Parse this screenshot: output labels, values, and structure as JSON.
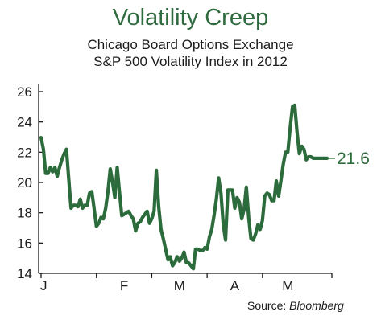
{
  "chart_data": {
    "type": "line",
    "title": "Volatility Creep",
    "subtitle_lines": [
      "Chicago Board Options Exchange",
      "S&P 500 Volatility Index in 2012"
    ],
    "xlabel": "",
    "ylabel": "",
    "ylim": [
      14,
      26
    ],
    "yticks": [
      14,
      16,
      18,
      20,
      22,
      24,
      26
    ],
    "x_tick_labels": [
      "J",
      "F",
      "M",
      "A",
      "M"
    ],
    "grid": false,
    "end_label": "21.6",
    "series": [
      {
        "color": "#2c6b3b",
        "x": [
          0,
          1,
          2,
          3,
          4,
          5,
          6,
          7,
          8,
          9,
          10,
          11,
          12,
          13,
          14,
          15,
          16,
          17,
          18,
          19,
          20,
          21,
          22,
          23,
          24,
          25,
          26,
          27,
          28,
          29,
          30,
          31,
          32,
          33,
          34,
          35,
          36,
          37,
          38,
          39,
          40,
          41,
          42,
          43,
          44,
          45,
          46,
          47,
          48,
          49,
          50,
          51,
          52,
          53,
          54,
          55,
          56,
          57,
          58,
          59,
          60,
          61,
          62,
          63,
          64,
          65,
          66,
          67,
          68,
          69,
          70,
          71,
          72,
          73,
          74,
          75,
          76,
          77,
          78,
          79,
          80,
          81,
          82,
          83,
          84,
          85,
          86,
          87,
          88,
          89,
          90,
          91,
          92,
          93,
          94,
          95,
          96,
          97,
          98,
          99,
          100,
          101,
          102,
          103,
          104,
          105,
          106,
          107,
          108,
          109,
          110,
          111,
          112,
          113,
          114,
          115,
          116,
          117,
          118,
          119,
          120,
          121,
          122,
          123,
          124
        ],
        "values": [
          22.97,
          22.2,
          20.6,
          20.6,
          21.0,
          20.7,
          21.0,
          20.4,
          21.0,
          21.5,
          21.9,
          22.2,
          20.2,
          18.3,
          18.5,
          18.5,
          18.4,
          18.9,
          18.3,
          18.5,
          18.5,
          19.3,
          19.4,
          18.3,
          17.1,
          17.3,
          17.7,
          17.6,
          18.3,
          19.4,
          20.9,
          20.0,
          19.0,
          21.0,
          19.4,
          17.8,
          17.9,
          18.0,
          18.1,
          17.8,
          17.6,
          16.8,
          17.3,
          17.4,
          17.7,
          17.9,
          18.1,
          17.3,
          17.6,
          18.1,
          20.8,
          18.4,
          16.9,
          16.3,
          15.6,
          14.9,
          15.1,
          14.5,
          14.7,
          15.1,
          14.8,
          15.0,
          15.4,
          14.7,
          14.7,
          14.5,
          14.3,
          15.6,
          15.6,
          15.5,
          15.5,
          15.7,
          15.6,
          16.4,
          16.9,
          17.8,
          18.9,
          20.3,
          19.3,
          17.2,
          16.2,
          19.5,
          19.5,
          19.5,
          18.3,
          19.0,
          18.7,
          17.6,
          18.2,
          19.7,
          17.7,
          16.3,
          16.2,
          16.6,
          17.2,
          16.9,
          17.5,
          19.1,
          19.3,
          19.2,
          18.8,
          18.8,
          20.1,
          19.1,
          20.1,
          21.2,
          22.0,
          22.0,
          23.6,
          25.0,
          25.1,
          23.3,
          21.9,
          22.4,
          22.2,
          21.5,
          21.7,
          21.7,
          21.6,
          21.6,
          21.6,
          21.6,
          21.6,
          21.6,
          21.6
        ]
      }
    ]
  },
  "source": {
    "prefix": "Source: ",
    "name": "Bloomberg"
  },
  "colors": {
    "line": "#2c6b3b",
    "title": "#2f6b3f",
    "axis": "#1b1b1b"
  }
}
